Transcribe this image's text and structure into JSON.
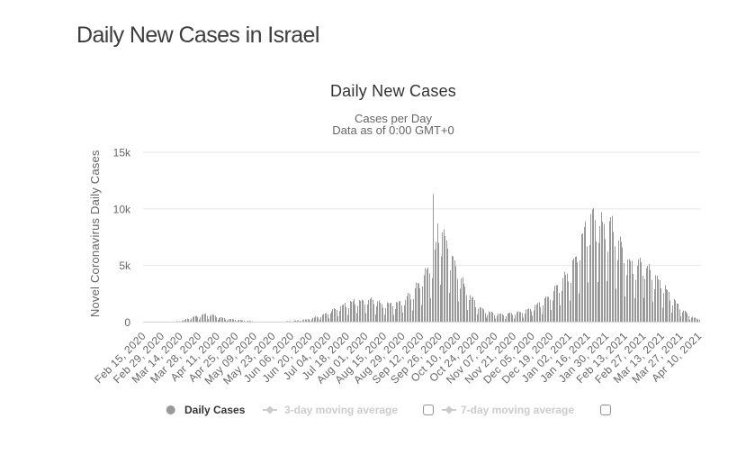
{
  "page": {
    "title": "Daily New Cases in Israel"
  },
  "chart": {
    "title": "Daily New Cases",
    "subtitle_line1": "Cases per Day",
    "subtitle_line2": "Data as of 0:00 GMT+0",
    "y_axis_title": "Novel Coronavirus Daily Cases",
    "y_tick_labels": [
      "0",
      "5k",
      "10k",
      "15k"
    ],
    "x_tick_labels": [
      "Feb 15, 2020",
      "Feb 29, 2020",
      "Mar 14, 2020",
      "Mar 28, 2020",
      "Apr 11, 2020",
      "Apr 25, 2020",
      "May 09, 2020",
      "May 23, 2020",
      "Jun 06, 2020",
      "Jun 20, 2020",
      "Jul 04, 2020",
      "Jul 18, 2020",
      "Aug 01, 2020",
      "Aug 15, 2020",
      "Aug 29, 2020",
      "Sep 12, 2020",
      "Sep 26, 2020",
      "Oct 10, 2020",
      "Oct 24, 2020",
      "Nov 07, 2020",
      "Nov 21, 2020",
      "Dec 05, 2020",
      "Dec 19, 2020",
      "Jan 02, 2021",
      "Jan 16, 2021",
      "Jan 30, 2021",
      "Feb 13, 2021",
      "Feb 27, 2021",
      "Mar 13, 2021",
      "Mar 27, 2021",
      "Apr 10, 2021"
    ],
    "colors": {
      "bar": "#999999",
      "gridline": "#e6e6e6",
      "axis_line": "#ccd6eb",
      "axis_label": "#666666",
      "title": "#333333",
      "subtitle": "#666666",
      "legend_label": "#333333",
      "legend_disabled": "#cccccc"
    },
    "legend": {
      "items": [
        {
          "label": "Daily Cases",
          "marker": "circle",
          "enabled": true,
          "has_checkbox": false,
          "checked": false
        },
        {
          "label": "3-day moving average",
          "marker": "line-diamond",
          "enabled": false,
          "has_checkbox": true,
          "checked": false
        },
        {
          "label": "7-day moving average",
          "marker": "line-diamond",
          "enabled": false,
          "has_checkbox": true,
          "checked": false
        }
      ]
    }
  },
  "chart_data": {
    "type": "bar",
    "title": "Daily New Cases",
    "subtitle": "Cases per Day\nData as of 0:00 GMT+0",
    "xlabel": "",
    "ylabel": "Novel Coronavirus Daily Cases",
    "ylim": [
      0,
      15000
    ],
    "y_ticks": [
      0,
      5000,
      10000,
      15000
    ],
    "y_tick_labels": [
      "0",
      "5k",
      "10k",
      "15k"
    ],
    "x_tick_labels": [
      "Feb 15, 2020",
      "Feb 29, 2020",
      "Mar 14, 2020",
      "Mar 28, 2020",
      "Apr 11, 2020",
      "Apr 25, 2020",
      "May 09, 2020",
      "May 23, 2020",
      "Jun 06, 2020",
      "Jun 20, 2020",
      "Jul 04, 2020",
      "Jul 18, 2020",
      "Aug 01, 2020",
      "Aug 15, 2020",
      "Aug 29, 2020",
      "Sep 12, 2020",
      "Sep 26, 2020",
      "Oct 10, 2020",
      "Oct 24, 2020",
      "Nov 07, 2020",
      "Nov 21, 2020",
      "Dec 05, 2020",
      "Dec 19, 2020",
      "Jan 02, 2021",
      "Jan 16, 2021",
      "Jan 30, 2021",
      "Feb 13, 2021",
      "Feb 27, 2021",
      "Mar 13, 2021",
      "Mar 27, 2021",
      "Apr 10, 2021"
    ],
    "x_tick_interval_days": 14,
    "grid": true,
    "legend_position": "bottom",
    "dates": [
      "2020-02-15",
      "2020-02-16",
      "2020-02-17",
      "2020-02-18",
      "2020-02-19",
      "2020-02-20",
      "2020-02-21",
      "2020-02-22",
      "2020-02-23",
      "2020-02-24",
      "2020-02-25",
      "2020-02-26",
      "2020-02-27",
      "2020-02-28",
      "2020-02-29",
      "2020-03-01",
      "2020-03-02",
      "2020-03-03",
      "2020-03-04",
      "2020-03-05",
      "2020-03-06",
      "2020-03-07",
      "2020-03-08",
      "2020-03-09",
      "2020-03-10",
      "2020-03-11",
      "2020-03-12",
      "2020-03-13",
      "2020-03-14",
      "2020-03-15",
      "2020-03-16",
      "2020-03-17",
      "2020-03-18",
      "2020-03-19",
      "2020-03-20",
      "2020-03-21",
      "2020-03-22",
      "2020-03-23",
      "2020-03-24",
      "2020-03-25",
      "2020-03-26",
      "2020-03-27",
      "2020-03-28",
      "2020-03-29",
      "2020-03-30",
      "2020-03-31",
      "2020-04-01",
      "2020-04-02",
      "2020-04-03",
      "2020-04-04",
      "2020-04-05",
      "2020-04-06",
      "2020-04-07",
      "2020-04-08",
      "2020-04-09",
      "2020-04-10",
      "2020-04-11",
      "2020-04-12",
      "2020-04-13",
      "2020-04-14",
      "2020-04-15",
      "2020-04-16",
      "2020-04-17",
      "2020-04-18",
      "2020-04-19",
      "2020-04-20",
      "2020-04-21",
      "2020-04-22",
      "2020-04-23",
      "2020-04-24",
      "2020-04-25",
      "2020-04-26",
      "2020-04-27",
      "2020-04-28",
      "2020-04-29",
      "2020-04-30",
      "2020-05-01",
      "2020-05-02",
      "2020-05-03",
      "2020-05-04",
      "2020-05-05",
      "2020-05-06",
      "2020-05-07",
      "2020-05-08",
      "2020-05-09",
      "2020-05-10",
      "2020-05-11",
      "2020-05-12",
      "2020-05-13",
      "2020-05-14",
      "2020-05-15",
      "2020-05-16",
      "2020-05-17",
      "2020-05-18",
      "2020-05-19",
      "2020-05-20",
      "2020-05-21",
      "2020-05-22",
      "2020-05-23",
      "2020-05-24",
      "2020-05-25",
      "2020-05-26",
      "2020-05-27",
      "2020-05-28",
      "2020-05-29",
      "2020-05-30",
      "2020-05-31",
      "2020-06-01",
      "2020-06-02",
      "2020-06-03",
      "2020-06-04",
      "2020-06-05",
      "2020-06-06",
      "2020-06-07",
      "2020-06-08",
      "2020-06-09",
      "2020-06-10",
      "2020-06-11",
      "2020-06-12",
      "2020-06-13",
      "2020-06-14",
      "2020-06-15",
      "2020-06-16",
      "2020-06-17",
      "2020-06-18",
      "2020-06-19",
      "2020-06-20",
      "2020-06-21",
      "2020-06-22",
      "2020-06-23",
      "2020-06-24",
      "2020-06-25",
      "2020-06-26",
      "2020-06-27",
      "2020-06-28",
      "2020-06-29",
      "2020-06-30",
      "2020-07-01",
      "2020-07-02",
      "2020-07-03",
      "2020-07-04",
      "2020-07-05",
      "2020-07-06",
      "2020-07-07",
      "2020-07-08",
      "2020-07-09",
      "2020-07-10",
      "2020-07-11",
      "2020-07-12",
      "2020-07-13",
      "2020-07-14",
      "2020-07-15",
      "2020-07-16",
      "2020-07-17",
      "2020-07-18",
      "2020-07-19",
      "2020-07-20",
      "2020-07-21",
      "2020-07-22",
      "2020-07-23",
      "2020-07-24",
      "2020-07-25",
      "2020-07-26",
      "2020-07-27",
      "2020-07-28",
      "2020-07-29",
      "2020-07-30",
      "2020-07-31",
      "2020-08-01",
      "2020-08-02",
      "2020-08-03",
      "2020-08-04",
      "2020-08-05",
      "2020-08-06",
      "2020-08-07",
      "2020-08-08",
      "2020-08-09",
      "2020-08-10",
      "2020-08-11",
      "2020-08-12",
      "2020-08-13",
      "2020-08-14",
      "2020-08-15",
      "2020-08-16",
      "2020-08-17",
      "2020-08-18",
      "2020-08-19",
      "2020-08-20",
      "2020-08-21",
      "2020-08-22",
      "2020-08-23",
      "2020-08-24",
      "2020-08-25",
      "2020-08-26",
      "2020-08-27",
      "2020-08-28",
      "2020-08-29",
      "2020-08-30",
      "2020-08-31",
      "2020-09-01",
      "2020-09-02",
      "2020-09-03",
      "2020-09-04",
      "2020-09-05",
      "2020-09-06",
      "2020-09-07",
      "2020-09-08",
      "2020-09-09",
      "2020-09-10",
      "2020-09-11",
      "2020-09-12",
      "2020-09-13",
      "2020-09-14",
      "2020-09-15",
      "2020-09-16",
      "2020-09-17",
      "2020-09-18",
      "2020-09-19",
      "2020-09-20",
      "2020-09-21",
      "2020-09-22",
      "2020-09-23",
      "2020-09-24",
      "2020-09-25",
      "2020-09-26",
      "2020-09-27",
      "2020-09-28",
      "2020-09-29",
      "2020-09-30",
      "2020-10-01",
      "2020-10-02",
      "2020-10-03",
      "2020-10-04",
      "2020-10-05",
      "2020-10-06",
      "2020-10-07",
      "2020-10-08",
      "2020-10-09",
      "2020-10-10",
      "2020-10-11",
      "2020-10-12",
      "2020-10-13",
      "2020-10-14",
      "2020-10-15",
      "2020-10-16",
      "2020-10-17",
      "2020-10-18",
      "2020-10-19",
      "2020-10-20",
      "2020-10-21",
      "2020-10-22",
      "2020-10-23",
      "2020-10-24",
      "2020-10-25",
      "2020-10-26",
      "2020-10-27",
      "2020-10-28",
      "2020-10-29",
      "2020-10-30",
      "2020-10-31",
      "2020-11-01",
      "2020-11-02",
      "2020-11-03",
      "2020-11-04",
      "2020-11-05",
      "2020-11-06",
      "2020-11-07",
      "2020-11-08",
      "2020-11-09",
      "2020-11-10",
      "2020-11-11",
      "2020-11-12",
      "2020-11-13",
      "2020-11-14",
      "2020-11-15",
      "2020-11-16",
      "2020-11-17",
      "2020-11-18",
      "2020-11-19",
      "2020-11-20",
      "2020-11-21",
      "2020-11-22",
      "2020-11-23",
      "2020-11-24",
      "2020-11-25",
      "2020-11-26",
      "2020-11-27",
      "2020-11-28",
      "2020-11-29",
      "2020-11-30",
      "2020-12-01",
      "2020-12-02",
      "2020-12-03",
      "2020-12-04",
      "2020-12-05",
      "2020-12-06",
      "2020-12-07",
      "2020-12-08",
      "2020-12-09",
      "2020-12-10",
      "2020-12-11",
      "2020-12-12",
      "2020-12-13",
      "2020-12-14",
      "2020-12-15",
      "2020-12-16",
      "2020-12-17",
      "2020-12-18",
      "2020-12-19",
      "2020-12-20",
      "2020-12-21",
      "2020-12-22",
      "2020-12-23",
      "2020-12-24",
      "2020-12-25",
      "2020-12-26",
      "2020-12-27",
      "2020-12-28",
      "2020-12-29",
      "2020-12-30",
      "2020-12-31",
      "2021-01-01",
      "2021-01-02",
      "2021-01-03",
      "2021-01-04",
      "2021-01-05",
      "2021-01-06",
      "2021-01-07",
      "2021-01-08",
      "2021-01-09",
      "2021-01-10",
      "2021-01-11",
      "2021-01-12",
      "2021-01-13",
      "2021-01-14",
      "2021-01-15",
      "2021-01-16",
      "2021-01-17",
      "2021-01-18",
      "2021-01-19",
      "2021-01-20",
      "2021-01-21",
      "2021-01-22",
      "2021-01-23",
      "2021-01-24",
      "2021-01-25",
      "2021-01-26",
      "2021-01-27",
      "2021-01-28",
      "2021-01-29",
      "2021-01-30",
      "2021-01-31",
      "2021-02-01",
      "2021-02-02",
      "2021-02-03",
      "2021-02-04",
      "2021-02-05",
      "2021-02-06",
      "2021-02-07",
      "2021-02-08",
      "2021-02-09",
      "2021-02-10",
      "2021-02-11",
      "2021-02-12",
      "2021-02-13",
      "2021-02-14",
      "2021-02-15",
      "2021-02-16",
      "2021-02-17",
      "2021-02-18",
      "2021-02-19",
      "2021-02-20",
      "2021-02-21",
      "2021-02-22",
      "2021-02-23",
      "2021-02-24",
      "2021-02-25",
      "2021-02-26",
      "2021-02-27",
      "2021-02-28",
      "2021-03-01",
      "2021-03-02",
      "2021-03-03",
      "2021-03-04",
      "2021-03-05",
      "2021-03-06",
      "2021-03-07",
      "2021-03-08",
      "2021-03-09",
      "2021-03-10",
      "2021-03-11",
      "2021-03-12",
      "2021-03-13",
      "2021-03-14",
      "2021-03-15",
      "2021-03-16",
      "2021-03-17",
      "2021-03-18",
      "2021-03-19",
      "2021-03-20",
      "2021-03-21",
      "2021-03-22",
      "2021-03-23",
      "2021-03-24",
      "2021-03-25",
      "2021-03-26",
      "2021-03-27",
      "2021-03-28",
      "2021-03-29",
      "2021-03-30",
      "2021-03-31",
      "2021-04-01",
      "2021-04-02",
      "2021-04-03",
      "2021-04-04",
      "2021-04-05",
      "2021-04-06",
      "2021-04-07",
      "2021-04-08",
      "2021-04-09",
      "2021-04-10"
    ],
    "series": [
      {
        "name": "Daily Cases",
        "type": "bar",
        "color": "#999999",
        "visible": true,
        "values": [
          0,
          0,
          0,
          0,
          0,
          1,
          1,
          0,
          1,
          1,
          1,
          1,
          2,
          1,
          1,
          2,
          4,
          5,
          6,
          9,
          10,
          7,
          14,
          33,
          45,
          64,
          69,
          81,
          51,
          114,
          173,
          219,
          277,
          315,
          285,
          161,
          319,
          441,
          501,
          529,
          572,
          451,
          250,
          447,
          653,
          731,
          703,
          765,
          562,
          289,
          516,
          628,
          669,
          635,
          553,
          444,
          209,
          355,
          439,
          455,
          377,
          373,
          258,
          134,
          222,
          295,
          281,
          267,
          251,
          196,
          82,
          161,
          192,
          192,
          170,
          158,
          109,
          55,
          86,
          105,
          102,
          98,
          81,
          56,
          27,
          48,
          58,
          50,
          50,
          41,
          27,
          13,
          23,
          25,
          27,
          24,
          23,
          16,
          8,
          17,
          23,
          26,
          27,
          32,
          29,
          17,
          38,
          54,
          67,
          76,
          81,
          73,
          41,
          79,
          121,
          148,
          148,
          161,
          135,
          80,
          142,
          228,
          245,
          258,
          267,
          230,
          139,
          247,
          391,
          411,
          499,
          488,
          388,
          229,
          448,
          620,
          710,
          742,
          810,
          657,
          355,
          739,
          955,
          1173,
          1232,
          1137,
          1075,
          504,
          998,
          1412,
          1529,
          1567,
          1726,
          1313,
          641,
          1219,
          1854,
          1805,
          1847,
          2010,
          1541,
          782,
          1427,
          1946,
          1885,
          1988,
          1909,
          1534,
          797,
          1535,
          1948,
          2038,
          2196,
          1976,
          1580,
          695,
          1403,
          1818,
          1891,
          1729,
          1606,
          1271,
          620,
          1215,
          1734,
          1677,
          1677,
          1705,
          1382,
          623,
          1142,
          1796,
          1707,
          1819,
          1879,
          1479,
          825,
          1489,
          1963,
          2321,
          2570,
          2522,
          1983,
          1052,
          2048,
          2993,
          3498,
          3478,
          3428,
          2980,
          1496,
          3145,
          4137,
          4778,
          4643,
          4800,
          4300,
          2100,
          3900,
          11316,
          6400,
          7100,
          8700,
          7000,
          3300,
          5800,
          7900,
          8200,
          7600,
          7200,
          6500,
          2578,
          4558,
          5866,
          5829,
          5443,
          4924,
          3801,
          1831,
          2937,
          3870,
          3962,
          3400,
          3155,
          2404,
          1062,
          1955,
          2393,
          2141,
          2217,
          1939,
          1320,
          665,
          1141,
          1319,
          1282,
          1214,
          1104,
          786,
          386,
          648,
          953,
          863,
          896,
          839,
          588,
          303,
          551,
          751,
          706,
          750,
          698,
          588,
          274,
          522,
          738,
          810,
          824,
          796,
          652,
          320,
          618,
          872,
          950,
          918,
          878,
          803,
          414,
          772,
          1096,
          1171,
          1187,
          1173,
          940,
          547,
          1015,
          1506,
          1551,
          1710,
          1733,
          1330,
          704,
          1455,
          2107,
          2279,
          2227,
          2234,
          2006,
          1070,
          1905,
          2760,
          3219,
          3274,
          3269,
          2602,
          1485,
          2756,
          3905,
          4462,
          4198,
          4278,
          3572,
          1928,
          3478,
          5442,
          5606,
          5753,
          5805,
          5300,
          2538,
          5458,
          7744,
          7842,
          8386,
          8908,
          6703,
          3518,
          6811,
          9563,
          9940,
          10060,
          8993,
          7117,
          3550,
          7018,
          8461,
          9700,
          8882,
          8683,
          7315,
          3625,
          6226,
          8923,
          9266,
          9372,
          7954,
          6684,
          2958,
          5497,
          7213,
          7541,
          7102,
          6588,
          5197,
          2275,
          4153,
          5549,
          5570,
          5402,
          5412,
          4252,
          2099,
          3760,
          4954,
          5527,
          5692,
          5276,
          4099,
          2146,
          3804,
          4785,
          4969,
          5118,
          4621,
          3749,
          1779,
          2893,
          4128,
          4109,
          3766,
          3705,
          2985,
          1268,
          2552,
          3264,
          2909,
          2834,
          2664,
          1918,
          830,
          1460,
          2021,
          1918,
          1651,
          1619,
          1117,
          531,
          863,
          1051,
          1014,
          932,
          744,
          537,
          229,
          405,
          491,
          413,
          414,
          313,
          233,
          249
        ]
      },
      {
        "name": "3-day moving average",
        "type": "line",
        "marker": "diamond",
        "visible": false,
        "values": []
      },
      {
        "name": "7-day moving average",
        "type": "line",
        "marker": "diamond",
        "visible": false,
        "values": []
      }
    ]
  }
}
